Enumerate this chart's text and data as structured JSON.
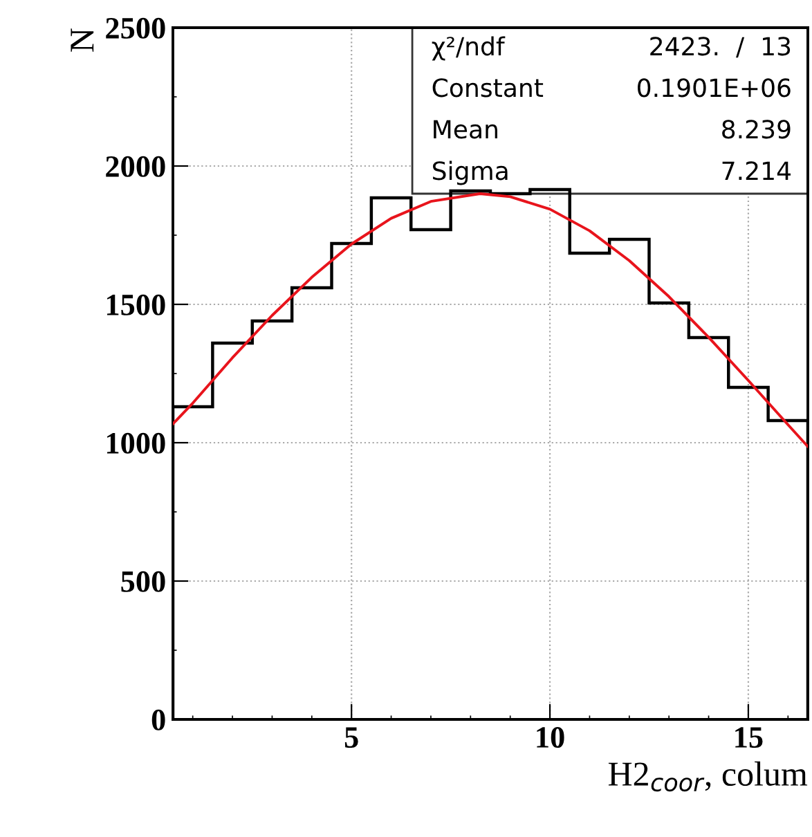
{
  "chart_data": {
    "type": "histogram",
    "xlabel": "H2$_{coor}$, colum",
    "ylabel": "N",
    "series": [
      {
        "color": "#000000",
        "bins": [
          0.5,
          1.5,
          2.5,
          3.5,
          4.5,
          5.5,
          6.5,
          7.5,
          8.5,
          9.5,
          10.5,
          11.5,
          12.5,
          13.5,
          14.5,
          15.5,
          16.5
        ],
        "values": [
          1130,
          1360,
          1440,
          1560,
          1720,
          1885,
          1770,
          1910,
          1900,
          1915,
          1685,
          1735,
          1505,
          1380,
          1200,
          1080
        ]
      },
      {
        "type": "line",
        "color": "#e8141c",
        "x": [
          0.5,
          1,
          2,
          3,
          4,
          5,
          6,
          7,
          8.239,
          9,
          10,
          11,
          12,
          13,
          14,
          15,
          16,
          16.5
        ],
        "values": [
          1068,
          1143,
          1307,
          1460,
          1598,
          1718,
          1811,
          1872,
          1900,
          1889,
          1844,
          1766,
          1658,
          1528,
          1381,
          1225,
          1065,
          986
        ]
      }
    ],
    "xlim": [
      0.5,
      16.5
    ],
    "xticks": [
      5,
      10,
      15
    ],
    "ylim": [
      0,
      2500
    ],
    "yticks": [
      0,
      500,
      1000,
      1500,
      2000,
      2500
    ],
    "grid": true,
    "annotations": [
      "χ²/ndf",
      "2423.  /  13",
      "Constant",
      "0.1901E+06",
      "Mean",
      "8.239",
      "Sigma",
      "7.214"
    ]
  }
}
